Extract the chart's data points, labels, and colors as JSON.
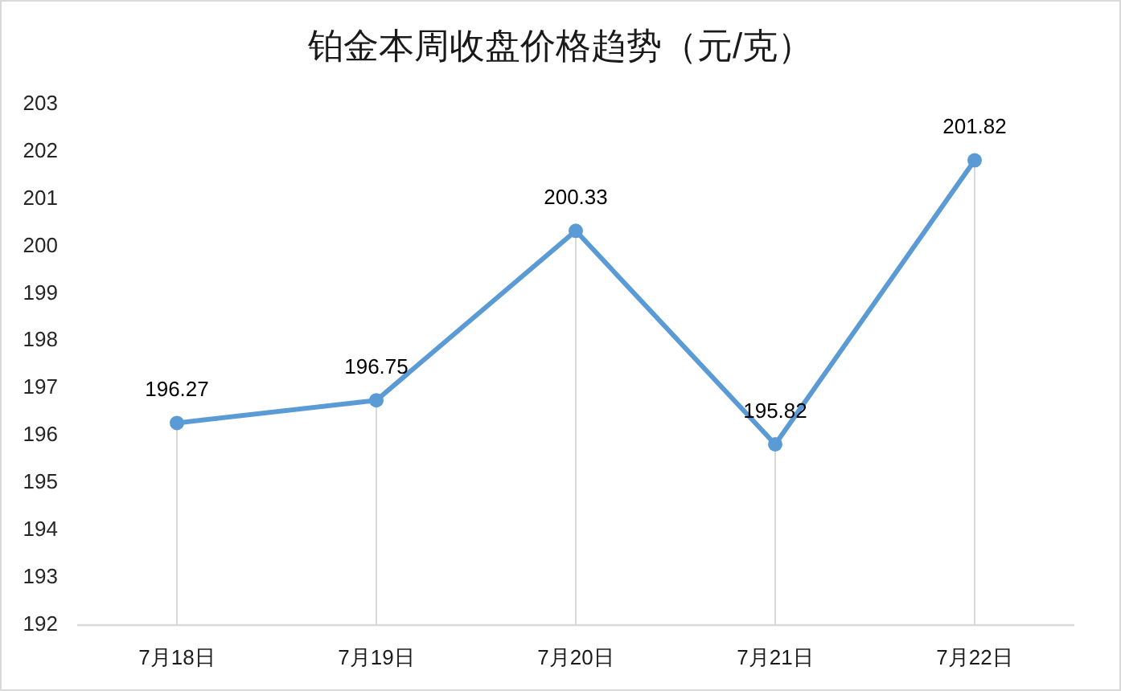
{
  "chart_data": {
    "type": "line",
    "title": "铂金本周收盘价格趋势（元/克）",
    "categories": [
      "7月18日",
      "7月19日",
      "7月20日",
      "7月21日",
      "7月22日"
    ],
    "series": [
      {
        "color": "#5b9bd5",
        "values": [
          196.27,
          196.75,
          200.33,
          195.82,
          201.82
        ]
      }
    ],
    "ylim": [
      192,
      203
    ],
    "yticks": [
      192,
      193,
      194,
      195,
      196,
      197,
      198,
      199,
      200,
      201,
      202,
      203
    ],
    "data_labels": true,
    "marker": "circle",
    "line_style": "solid",
    "grid": "x"
  }
}
